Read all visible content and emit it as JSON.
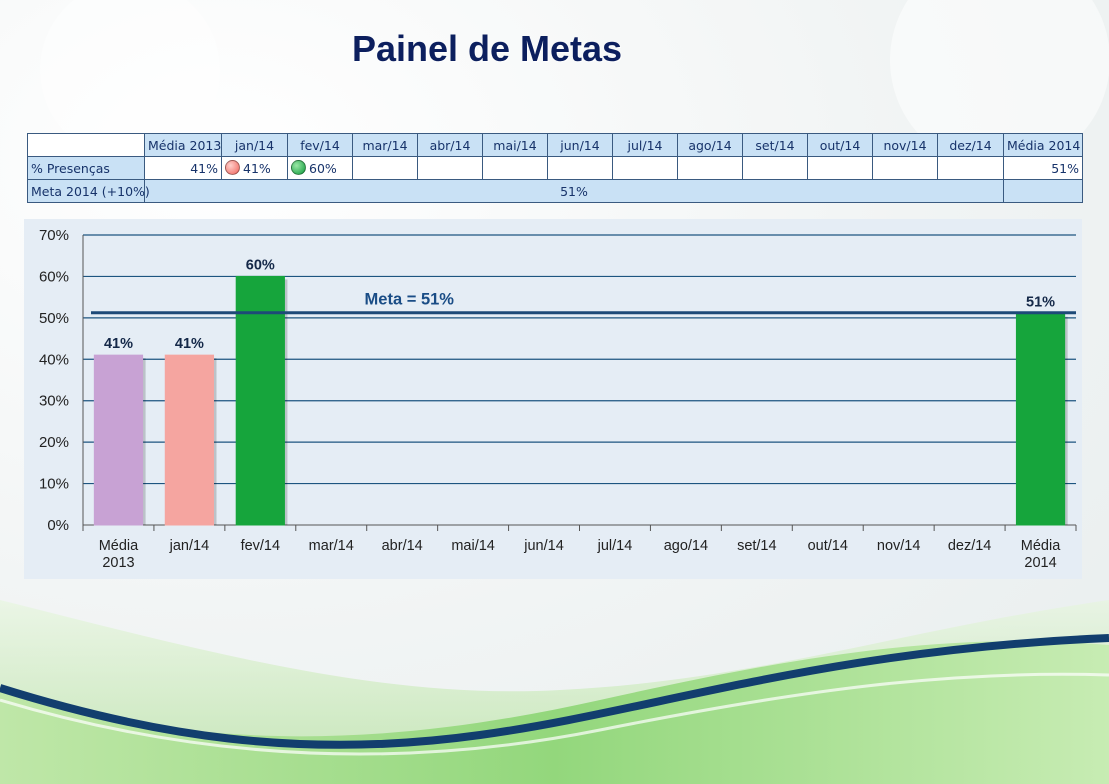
{
  "title": "Painel de Metas",
  "colors": {
    "title": "#0c1f5e",
    "media_2013_bar": "#c8a2d4",
    "below_goal_bar": "#f5a5a0",
    "above_goal_bar": "#16a53c",
    "goal_line": "#1d4a78",
    "gridline": "#1d5580",
    "table_header": "#c9e1f5"
  },
  "table": {
    "header": [
      "Média 2013",
      "jan/14",
      "fev/14",
      "mar/14",
      "abr/14",
      "mai/14",
      "jun/14",
      "jul/14",
      "ago/14",
      "set/14",
      "out/14",
      "nov/14",
      "dez/14",
      "Média 2014"
    ],
    "row_presencas": {
      "label": "% Presenças",
      "values": [
        "41%",
        "41%",
        "60%",
        "",
        "",
        "",
        "",
        "",
        "",
        "",
        "",
        "",
        "",
        "51%"
      ],
      "indicators": [
        "",
        "red",
        "green",
        "",
        "",
        "",
        "",
        "",
        "",
        "",
        "",
        "",
        "",
        ""
      ]
    },
    "row_meta": {
      "label": "Meta 2014 (+10%)",
      "value": "51%"
    }
  },
  "chart_data": {
    "type": "bar",
    "categories": [
      "Média 2013",
      "jan/14",
      "fev/14",
      "mar/14",
      "abr/14",
      "mai/14",
      "jun/14",
      "jul/14",
      "ago/14",
      "set/14",
      "out/14",
      "nov/14",
      "dez/14",
      "Média 2014"
    ],
    "category_lines": [
      [
        "Média",
        "2013"
      ],
      [
        "jan/14"
      ],
      [
        "fev/14"
      ],
      [
        "mar/14"
      ],
      [
        "abr/14"
      ],
      [
        "mai/14"
      ],
      [
        "jun/14"
      ],
      [
        "jul/14"
      ],
      [
        "ago/14"
      ],
      [
        "set/14"
      ],
      [
        "out/14"
      ],
      [
        "nov/14"
      ],
      [
        "dez/14"
      ],
      [
        "Média",
        "2014"
      ]
    ],
    "values": [
      41,
      41,
      60,
      null,
      null,
      null,
      null,
      null,
      null,
      null,
      null,
      null,
      null,
      51
    ],
    "data_labels": [
      "41%",
      "41%",
      "60%",
      "",
      "",
      "",
      "",
      "",
      "",
      "",
      "",
      "",
      "",
      "51%"
    ],
    "bar_colors": [
      "#c8a2d4",
      "#f5a5a0",
      "#16a53c",
      "",
      "",
      "",
      "",
      "",
      "",
      "",
      "",
      "",
      "",
      "#16a53c"
    ],
    "ylim": [
      0,
      70
    ],
    "yticks": [
      0,
      10,
      20,
      30,
      40,
      50,
      60,
      70
    ],
    "ytick_labels": [
      "0%",
      "10%",
      "20%",
      "30%",
      "40%",
      "50%",
      "60%",
      "70%"
    ],
    "goal_line": {
      "value": 51,
      "label": "Meta = 51%"
    },
    "grid": true,
    "legend": "none"
  }
}
